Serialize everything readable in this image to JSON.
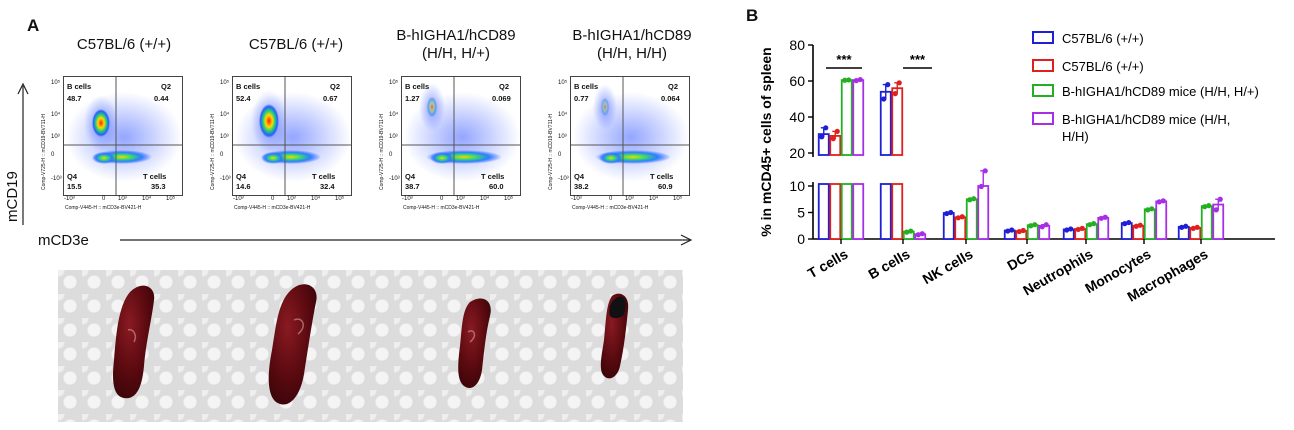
{
  "panel_a_label": "A",
  "panel_b_label": "B",
  "flow": {
    "y_axis_label": "mCD19",
    "x_axis_label": "mCD3e",
    "y_channel": "Comp-V725-H :: mCD19-BV711-H",
    "x_channel": "Comp-V445-H :: mCD3e-BV421-H",
    "x_ticks": [
      "-10³",
      "0",
      "10³",
      "10⁴",
      "10⁵"
    ],
    "y_ticks": [
      "10⁵",
      "10⁴",
      "10³",
      "0",
      "-10³"
    ],
    "plots": [
      {
        "title_lines": [
          "C57BL/6 (+/+)"
        ],
        "bcell_label": "B cells",
        "bcell_value": "48.7",
        "q2_label": "Q2",
        "q2_value": "0.44",
        "q4_label": "Q4",
        "q4_value": "15.5",
        "tcell_label": "T cells",
        "tcell_value": "35.3"
      },
      {
        "title_lines": [
          "C57BL/6 (+/+)"
        ],
        "bcell_label": "B cells",
        "bcell_value": "52.4",
        "q2_label": "Q2",
        "q2_value": "0.67",
        "q4_label": "Q4",
        "q4_value": "14.6",
        "tcell_label": "T cells",
        "tcell_value": "32.4"
      },
      {
        "title_lines": [
          "B-hIGHA1/hCD89",
          "(H/H, H/+)"
        ],
        "bcell_label": "B cells",
        "bcell_value": "1.27",
        "q2_label": "Q2",
        "q2_value": "0.069",
        "q4_label": "Q4",
        "q4_value": "38.7",
        "tcell_label": "T cells",
        "tcell_value": "60.0"
      },
      {
        "title_lines": [
          "B-hIGHA1/hCD89",
          "(H/H, H/H)"
        ],
        "bcell_label": "B cells",
        "bcell_value": "0.77",
        "q2_label": "Q2",
        "q2_value": "0.064",
        "q4_label": "Q4",
        "q4_value": "38.2",
        "tcell_label": "T cells",
        "tcell_value": "60.9"
      }
    ]
  },
  "colors": {
    "series": [
      "#1f1fd6",
      "#e0201c",
      "#22b022",
      "#a82ee6"
    ],
    "spleen": "#5a0a10",
    "spleen_highlight": "#9a3a40"
  },
  "chart_data": {
    "type": "bar",
    "ylabel": "% in mCD45+ cells of spleen",
    "ylim": [
      0,
      80
    ],
    "y_break": [
      10,
      20
    ],
    "y_ticks": [
      0,
      5,
      10,
      20,
      40,
      60,
      80
    ],
    "categories": [
      "T cells",
      "B cells",
      "NK cells",
      "DCs",
      "Neutrophils",
      "Monocytes",
      "Macrophages"
    ],
    "series": [
      {
        "name": "C57BL/6 (+/+)",
        "values": [
          30.5,
          54.0,
          4.9,
          1.6,
          1.8,
          3.0,
          2.3
        ]
      },
      {
        "name": "C57BL/6 (+/+)",
        "values": [
          29.5,
          56.0,
          4.1,
          1.5,
          1.9,
          2.5,
          2.1
        ]
      },
      {
        "name": "B-hIGHA1/hCD89 mice (H/H, H/+)",
        "values": [
          60.5,
          1.4,
          7.5,
          2.6,
          2.8,
          5.6,
          6.2
        ]
      },
      {
        "name": "B-hIGHA1/hCD89 mice (H/H, H/H)",
        "values": [
          60.5,
          0.9,
          10.0,
          2.5,
          4.0,
          7.1,
          6.5
        ]
      }
    ],
    "points": [
      [
        [
          29,
          34
        ],
        [
          28,
          32
        ],
        [
          60.4,
          60.6
        ],
        [
          60.2,
          60.8
        ]
      ],
      [
        [
          50,
          58
        ],
        [
          53,
          59
        ],
        [
          1.3,
          1.5
        ],
        [
          0.8,
          1.0
        ]
      ],
      [
        [
          4.8,
          5.0
        ],
        [
          4.0,
          4.2
        ],
        [
          7.4,
          7.6
        ],
        [
          9.9,
          10.1
        ]
      ],
      [
        [
          1.5,
          1.7
        ],
        [
          1.4,
          1.6
        ],
        [
          2.5,
          2.7
        ],
        [
          2.3,
          2.7
        ]
      ],
      [
        [
          1.7,
          1.9
        ],
        [
          1.8,
          2.0
        ],
        [
          2.7,
          2.9
        ],
        [
          3.9,
          4.1
        ]
      ],
      [
        [
          2.9,
          3.1
        ],
        [
          2.4,
          2.6
        ],
        [
          5.5,
          5.7
        ],
        [
          7.0,
          7.2
        ]
      ],
      [
        [
          2.2,
          2.4
        ],
        [
          2.0,
          2.2
        ],
        [
          6.1,
          6.3
        ],
        [
          5.5,
          7.5
        ]
      ]
    ],
    "significance": [
      {
        "category": "T cells",
        "label": "***"
      },
      {
        "category": "B cells",
        "label": "***"
      }
    ],
    "legend_position": "top-right"
  }
}
